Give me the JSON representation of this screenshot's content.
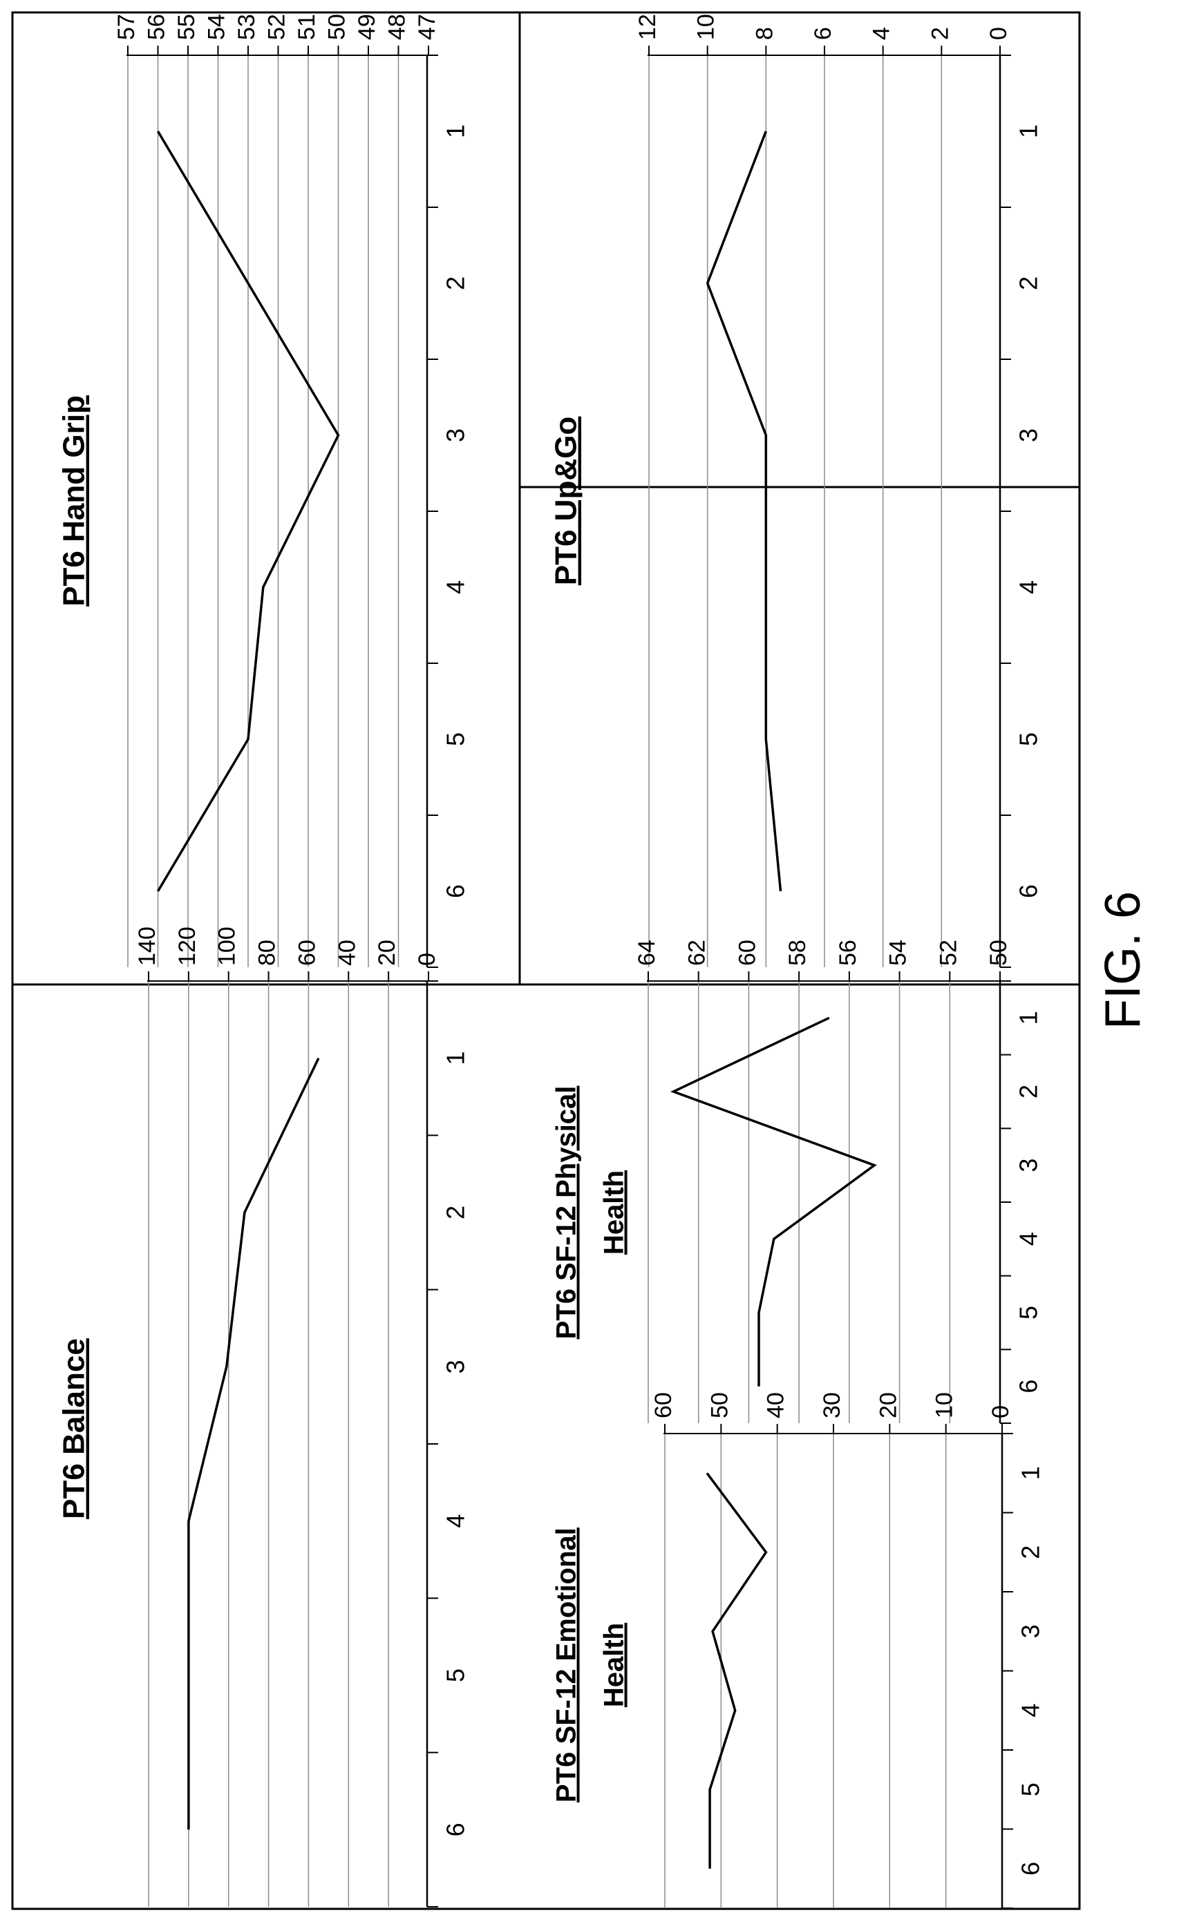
{
  "figure_label": "FIG. 6",
  "chart_data": [
    {
      "id": "hand-grip",
      "type": "line",
      "title": "PT6 Hand Grip",
      "x": [
        1,
        2,
        3,
        4,
        5,
        6
      ],
      "x_ticks": [
        "1",
        "2",
        "3",
        "4",
        "5",
        "6"
      ],
      "values": [
        56,
        53,
        50,
        52.5,
        53,
        56
      ],
      "ylim": [
        47,
        57
      ],
      "y_ticks": [
        "47",
        "48",
        "49",
        "50",
        "51",
        "52",
        "53",
        "54",
        "55",
        "56",
        "57"
      ],
      "grid": true
    },
    {
      "id": "balance",
      "type": "line",
      "title": "PT6 Balance",
      "x": [
        1,
        2,
        3,
        4,
        5,
        6
      ],
      "x_ticks": [
        "1",
        "2",
        "3",
        "4",
        "5",
        "6"
      ],
      "values": [
        55,
        92,
        101,
        120,
        120,
        120
      ],
      "ylim": [
        0,
        140
      ],
      "y_ticks": [
        "0",
        "20",
        "40",
        "60",
        "80",
        "100",
        "120",
        "140"
      ],
      "grid": true
    },
    {
      "id": "up-go",
      "type": "line",
      "title": "PT6 Up&Go",
      "x": [
        1,
        2,
        3,
        4,
        5,
        6
      ],
      "x_ticks": [
        "1",
        "2",
        "3",
        "4",
        "5",
        "6"
      ],
      "values": [
        8,
        10,
        8,
        8,
        8,
        7.5
      ],
      "ylim": [
        0,
        12
      ],
      "y_ticks": [
        "0",
        "2",
        "4",
        "6",
        "8",
        "10",
        "12"
      ],
      "grid": true
    },
    {
      "id": "physical",
      "type": "line",
      "title": "PT6 SF-12 Physical Health",
      "title_lines": [
        "PT6 SF-12 Physical",
        "Health"
      ],
      "x": [
        1,
        2,
        3,
        4,
        5,
        6
      ],
      "x_ticks": [
        "1",
        "2",
        "3",
        "4",
        "5",
        "6"
      ],
      "values": [
        56.8,
        63.0,
        55.0,
        59.0,
        59.6,
        59.6
      ],
      "ylim": [
        50,
        64
      ],
      "y_ticks": [
        "50",
        "52",
        "54",
        "56",
        "58",
        "60",
        "62",
        "64"
      ],
      "grid": true
    },
    {
      "id": "emotional",
      "type": "line",
      "title": "PT6 SF-12 Emotional Health",
      "title_lines": [
        "PT6 SF-12 Emotional",
        "Health"
      ],
      "x": [
        1,
        2,
        3,
        4,
        5,
        6
      ],
      "x_ticks": [
        "1",
        "2",
        "3",
        "4",
        "5",
        "6"
      ],
      "values": [
        52.5,
        42.0,
        51.5,
        47.5,
        52.0,
        52.0
      ],
      "ylim": [
        0,
        60
      ],
      "y_ticks": [
        "0",
        "10",
        "20",
        "30",
        "40",
        "50",
        "60"
      ],
      "grid": true
    }
  ]
}
